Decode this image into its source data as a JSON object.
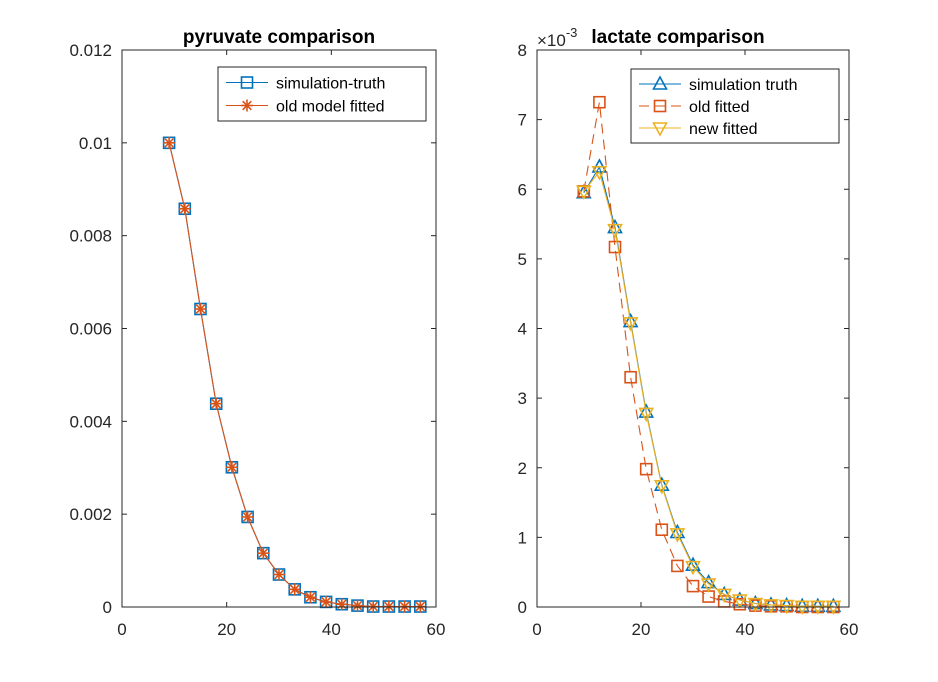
{
  "chart_data": [
    {
      "type": "line",
      "title": "pyruvate comparison",
      "xlim": [
        0,
        60
      ],
      "ylim": [
        0,
        0.012
      ],
      "xticks": [
        "0",
        "20",
        "40",
        "60"
      ],
      "yticks": [
        "0",
        "0.002",
        "0.004",
        "0.006",
        "0.008",
        "0.01",
        "0.012"
      ],
      "grid": false,
      "legend_position": "top-right",
      "x": [
        9,
        12,
        15,
        18,
        21,
        24,
        27,
        30,
        33,
        36,
        39,
        42,
        45,
        48,
        51,
        54,
        57
      ],
      "series": [
        {
          "name": "simulation-truth",
          "color": "#0072BD",
          "marker": "square",
          "line": "solid",
          "values": [
            0.01,
            0.00858,
            0.00642,
            0.00438,
            0.00301,
            0.00194,
            0.00116,
            0.0007,
            0.00038,
            0.00021,
            0.00011,
            6e-05,
            3e-05,
            1e-05,
            1e-05,
            1e-05,
            1e-05
          ]
        },
        {
          "name": "old model fitted",
          "color": "#D95319",
          "marker": "asterisk",
          "line": "solid",
          "values": [
            0.01,
            0.00858,
            0.00642,
            0.00438,
            0.00301,
            0.00194,
            0.00116,
            0.0007,
            0.00038,
            0.00021,
            0.00011,
            6e-05,
            3e-05,
            1e-05,
            1e-05,
            1e-05,
            1e-05
          ]
        }
      ]
    },
    {
      "type": "line",
      "title": "lactate comparison",
      "exponent_label": "×10",
      "exponent_power": "-3",
      "xlim": [
        0,
        60
      ],
      "ylim": [
        0,
        8
      ],
      "xticks": [
        "0",
        "20",
        "40",
        "60"
      ],
      "yticks": [
        "0",
        "1",
        "2",
        "3",
        "4",
        "5",
        "6",
        "7",
        "8"
      ],
      "grid": false,
      "legend_position": "top-right",
      "x": [
        9,
        12,
        15,
        18,
        21,
        24,
        27,
        30,
        33,
        36,
        39,
        42,
        45,
        48,
        51,
        54,
        57
      ],
      "series": [
        {
          "name": "simulation truth",
          "color": "#0072BD",
          "marker": "triangle-up",
          "line": "solid",
          "values": [
            5.95,
            6.32,
            5.45,
            4.1,
            2.8,
            1.75,
            1.07,
            0.6,
            0.35,
            0.18,
            0.1,
            0.05,
            0.03,
            0.02,
            0.01,
            0.01,
            0.01
          ]
        },
        {
          "name": "old fitted",
          "color": "#D95319",
          "marker": "square",
          "line": "dashed",
          "values": [
            5.97,
            7.25,
            5.17,
            3.3,
            1.98,
            1.11,
            0.59,
            0.3,
            0.15,
            0.08,
            0.04,
            0.02,
            0.01,
            0.01,
            0.0,
            0.0,
            0.0
          ]
        },
        {
          "name": "new fitted",
          "color": "#EDB120",
          "marker": "triangle-down",
          "line": "solid",
          "values": [
            5.97,
            6.25,
            5.42,
            4.08,
            2.78,
            1.74,
            1.05,
            0.58,
            0.33,
            0.18,
            0.1,
            0.05,
            0.03,
            0.02,
            0.01,
            0.01,
            0.01
          ]
        }
      ]
    }
  ]
}
